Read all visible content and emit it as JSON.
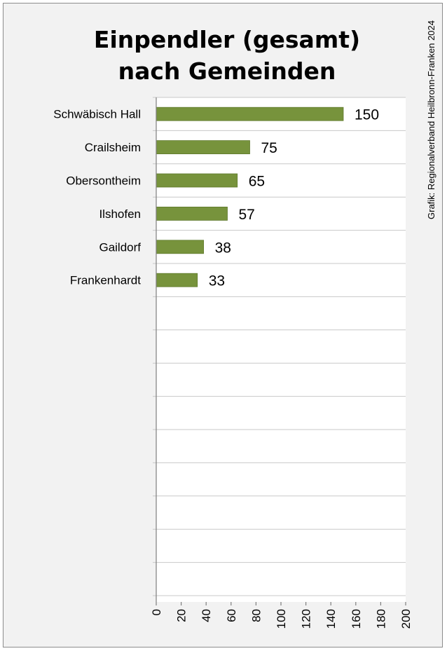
{
  "chart_data": {
    "type": "bar",
    "orientation": "horizontal",
    "title": [
      "Einpendler (gesamt)",
      "nach Gemeinden"
    ],
    "categories": [
      "Schwäbisch Hall",
      "Crailsheim",
      "Obersontheim",
      "Ilshofen",
      "Gaildorf",
      "Frankenhardt"
    ],
    "values": [
      150,
      75,
      65,
      57,
      38,
      33
    ],
    "xlim": [
      0,
      200
    ],
    "xticks": [
      "0",
      "20",
      "40",
      "60",
      "80",
      "100",
      "120",
      "140",
      "160",
      "180",
      "200"
    ],
    "xticks_rotated": true,
    "grid": true,
    "legend": "none",
    "credit": "Grafik: Regionalverband Heilbronn-Franken 2024",
    "colors": {
      "bar": "#77933c",
      "bar_edge": "#5f7a2c",
      "plot_bg": "#ffffff",
      "frame_bg": "#f2f2f2"
    }
  }
}
